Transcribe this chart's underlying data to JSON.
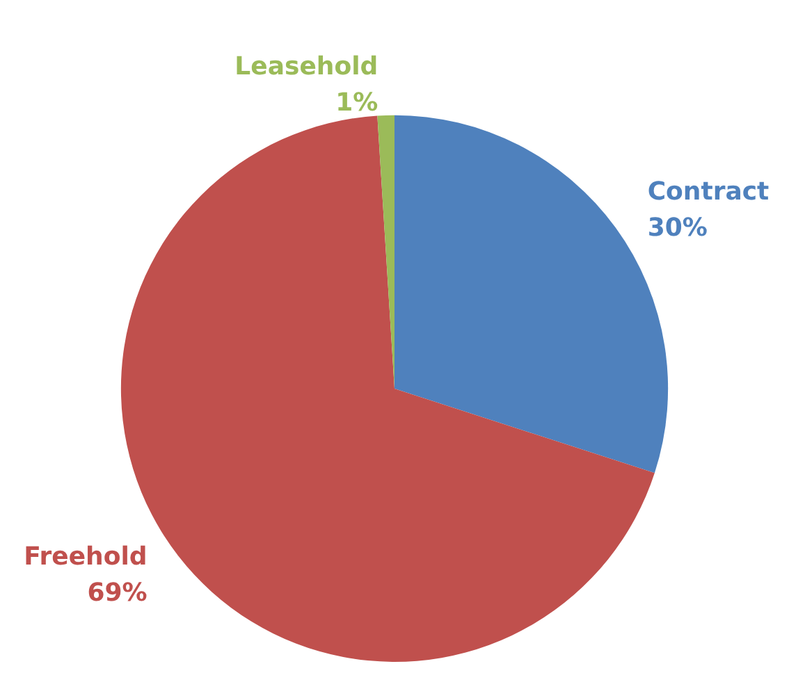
{
  "chart_data": {
    "type": "pie",
    "categories": [
      "Contract",
      "Freehold",
      "Leasehold"
    ],
    "values": [
      30,
      69,
      1
    ],
    "colors": [
      "#4f81bd",
      "#c0504d",
      "#9bbb59"
    ],
    "value_labels": [
      "30%",
      "69%",
      "1%"
    ],
    "legend": false
  }
}
